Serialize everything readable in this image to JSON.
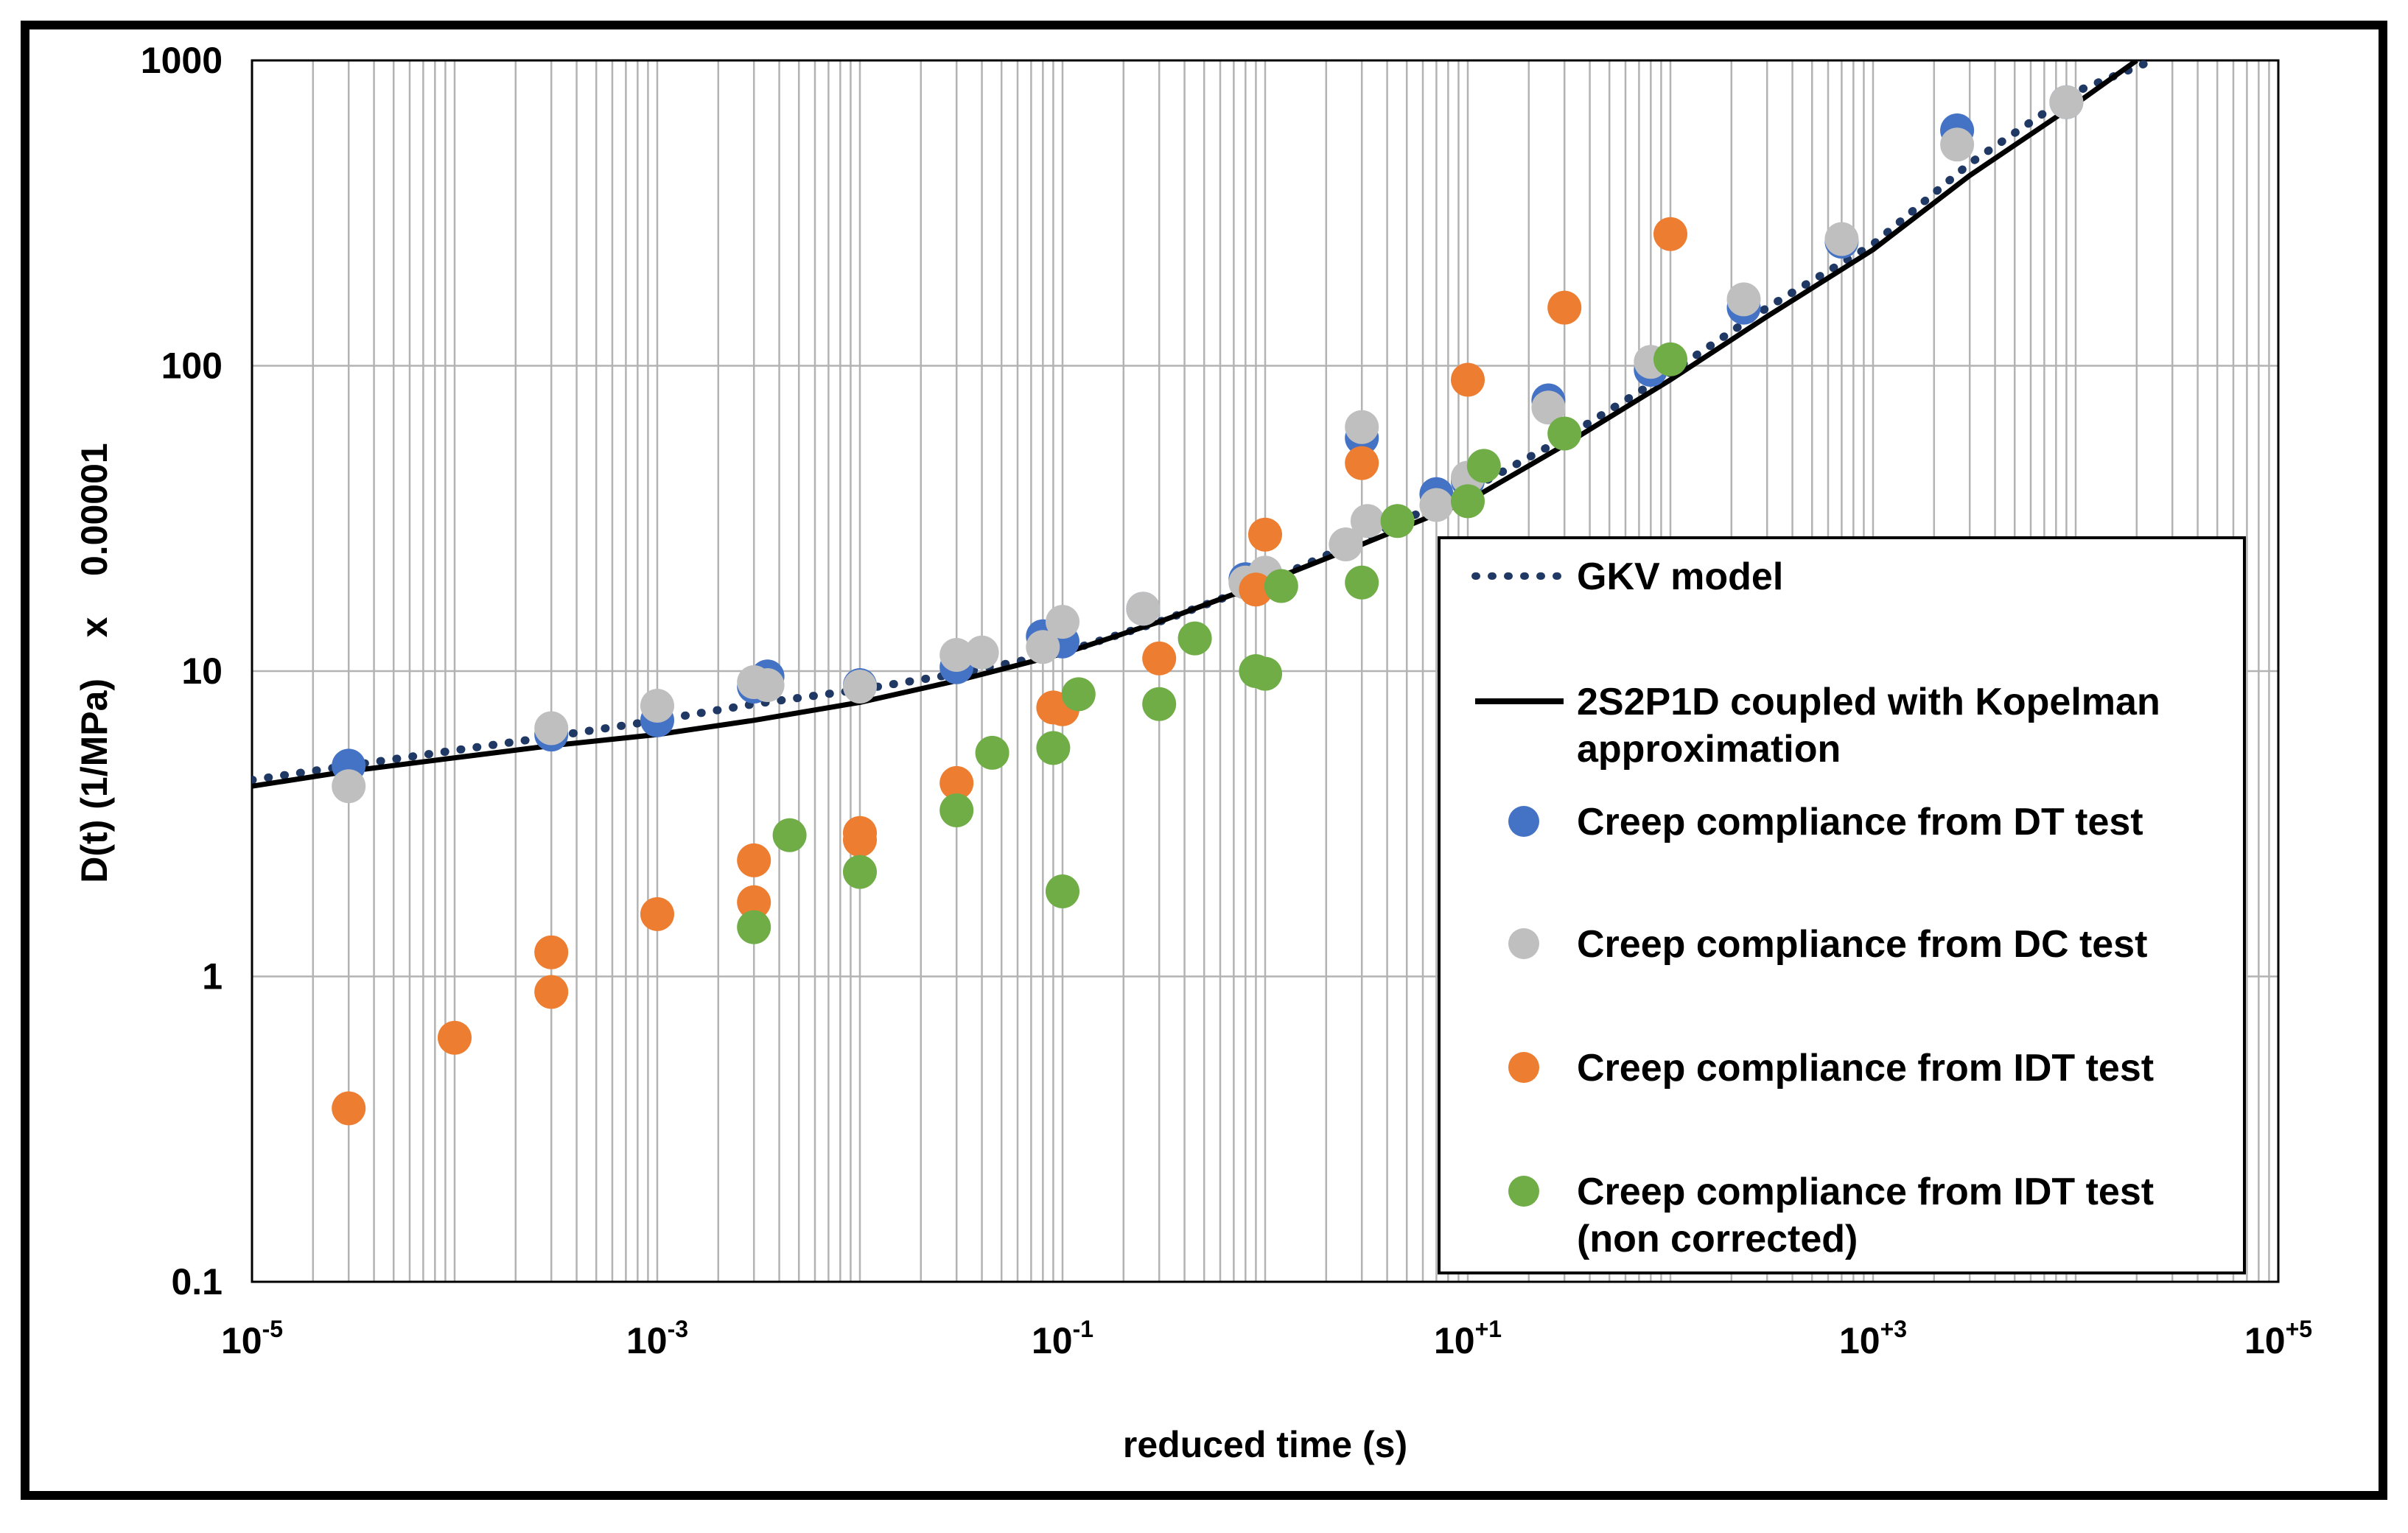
{
  "chart_data": {
    "type": "scatter",
    "xscale": "log",
    "yscale": "log",
    "xlim": [
      1e-05,
      100000
    ],
    "ylim": [
      0.1,
      1000
    ],
    "xlabel": "reduced time (s)",
    "ylabel": "D(t) (1/MPa)    x    0.00001",
    "x_ticks": [
      {
        "base": "10",
        "exp": "-5",
        "value": 1e-05
      },
      {
        "base": "10",
        "exp": "-3",
        "value": 0.001
      },
      {
        "base": "10",
        "exp": "-1",
        "value": 0.1
      },
      {
        "base": "10",
        "exp": "+1",
        "value": 10
      },
      {
        "base": "10",
        "exp": "+3",
        "value": 1000
      },
      {
        "base": "10",
        "exp": "+5",
        "value": 100000
      }
    ],
    "y_ticks": [
      {
        "label": "1000",
        "value": 1000
      },
      {
        "label": "100",
        "value": 100
      },
      {
        "label": "10",
        "value": 10
      },
      {
        "label": "1",
        "value": 1
      },
      {
        "label": "0.1",
        "value": 0.1
      }
    ],
    "grid": true,
    "legend_position": "bottom-right",
    "series": [
      {
        "name": "GKV model",
        "kind": "line",
        "style": "dotted",
        "color": "#1f3864",
        "x": [
          1e-05,
          3e-05,
          0.0001,
          0.0003,
          0.001,
          0.003,
          0.01,
          0.03,
          0.1,
          0.3,
          1,
          3,
          10,
          30,
          100,
          300,
          1000,
          3000,
          10000,
          24000
        ],
        "y": [
          4.4,
          4.9,
          5.5,
          6.1,
          6.9,
          7.8,
          8.7,
          9.8,
          11.5,
          14.5,
          19.5,
          27,
          39,
          58,
          95,
          155,
          250,
          460,
          790,
          1000
        ]
      },
      {
        "name": "2S2P1D coupled with Kopelman approximation",
        "kind": "line",
        "style": "solid",
        "color": "#000000",
        "x": [
          1e-05,
          3e-05,
          0.0001,
          0.0003,
          0.001,
          0.003,
          0.01,
          0.03,
          0.1,
          0.3,
          1,
          3,
          10,
          30,
          100,
          300,
          1000,
          3000,
          10000,
          20000
        ],
        "y": [
          4.2,
          4.7,
          5.2,
          5.7,
          6.2,
          6.9,
          7.9,
          9.3,
          11.4,
          14.5,
          19.5,
          26,
          36,
          55,
          90,
          145,
          240,
          420,
          720,
          1000
        ]
      },
      {
        "name": "Creep compliance from DT test",
        "kind": "scatter",
        "color": "#4472c4",
        "x": [
          3e-05,
          0.0003,
          0.001,
          0.003,
          0.0035,
          0.01,
          0.03,
          0.08,
          0.1,
          0.25,
          0.8,
          3,
          7,
          10,
          25,
          80,
          230,
          700,
          2600,
          9000
        ],
        "y": [
          4.9,
          6.2,
          6.9,
          8.9,
          9.6,
          9.0,
          10.3,
          13.0,
          12.5,
          16.0,
          20.0,
          58,
          38,
          42,
          77,
          97,
          155,
          255,
          590,
          730
        ]
      },
      {
        "name": "Creep compliance from DC test",
        "kind": "scatter",
        "color": "#bfbfbf",
        "x": [
          3e-05,
          0.0003,
          0.001,
          0.003,
          0.0035,
          0.01,
          0.03,
          0.04,
          0.08,
          0.1,
          0.25,
          0.8,
          1,
          2.5,
          3,
          3.2,
          7,
          10,
          25,
          80,
          230,
          700,
          2600,
          9000
        ],
        "y": [
          4.2,
          6.5,
          7.7,
          9.2,
          9.0,
          8.9,
          11.3,
          11.5,
          12.0,
          14.5,
          16.0,
          19.5,
          21.0,
          26,
          63,
          31,
          35,
          43,
          73,
          103,
          165,
          260,
          530,
          730
        ]
      },
      {
        "name": "Creep compliance from IDT test",
        "kind": "scatter",
        "color": "#ed7d31",
        "x": [
          3e-05,
          0.0001,
          0.0003,
          0.0003,
          0.001,
          0.003,
          0.003,
          0.01,
          0.01,
          0.03,
          0.09,
          0.1,
          0.3,
          0.9,
          1,
          3,
          10,
          30,
          100
        ],
        "y": [
          0.37,
          0.63,
          1.2,
          0.89,
          1.6,
          2.4,
          1.75,
          2.95,
          2.8,
          4.3,
          7.6,
          7.5,
          11.0,
          18.5,
          28,
          48,
          90,
          155,
          270
        ]
      },
      {
        "name": "Creep compliance from IDT test\n(non corrected)",
        "kind": "scatter",
        "color": "#70ad47",
        "x": [
          0.003,
          0.0045,
          0.01,
          0.03,
          0.045,
          0.09,
          0.1,
          0.12,
          0.3,
          0.45,
          0.9,
          1,
          1.2,
          3,
          4.5,
          10,
          12,
          30,
          100
        ],
        "y": [
          1.45,
          2.9,
          2.2,
          3.5,
          5.4,
          5.6,
          1.9,
          8.4,
          7.8,
          12.8,
          10.0,
          9.8,
          19.0,
          19.5,
          31,
          36,
          47,
          60,
          105
        ]
      }
    ]
  }
}
